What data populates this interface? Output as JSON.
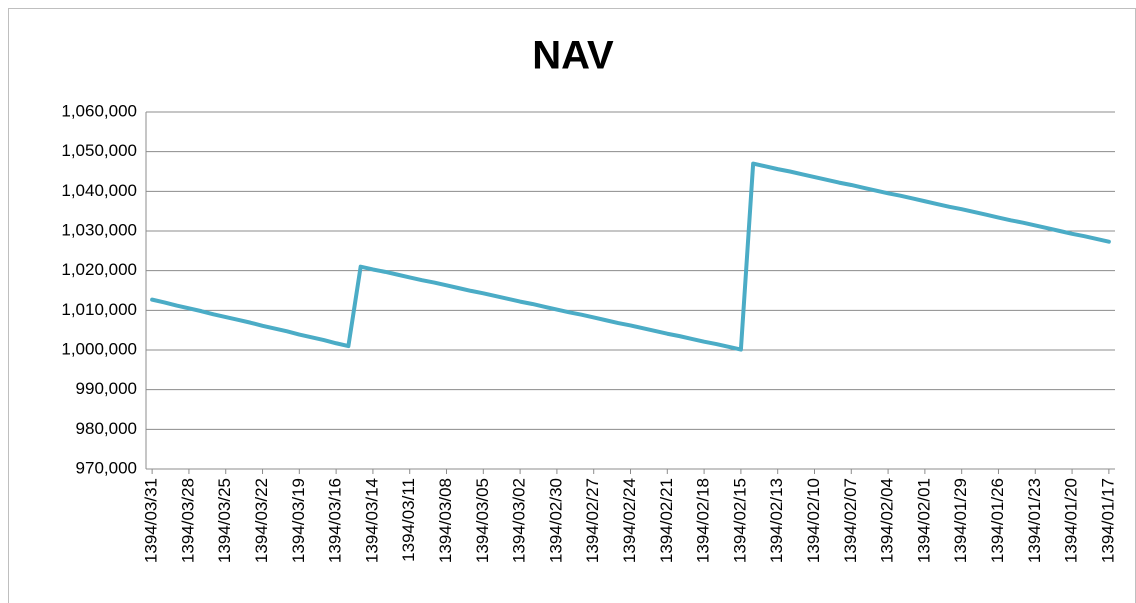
{
  "chart_data": {
    "type": "line",
    "title": "NAV",
    "color": "#4bacc6",
    "grid": true,
    "categories": [
      "1394/03/31",
      null,
      null,
      "1394/03/28",
      null,
      null,
      "1394/03/25",
      null,
      null,
      "1394/03/22",
      null,
      null,
      "1394/03/19",
      null,
      null,
      "1394/03/16",
      null,
      null,
      "1394/03/14",
      null,
      null,
      "1394/03/11",
      null,
      null,
      "1394/03/08",
      null,
      null,
      "1394/03/05",
      null,
      null,
      "1394/03/02",
      null,
      null,
      "1394/02/30",
      null,
      null,
      "1394/02/27",
      null,
      null,
      "1394/02/24",
      null,
      null,
      "1394/02/21",
      null,
      null,
      "1394/02/18",
      null,
      null,
      "1394/02/15",
      null,
      null,
      "1394/02/13",
      null,
      null,
      "1394/02/10",
      null,
      null,
      "1394/02/07",
      null,
      null,
      "1394/02/04",
      null,
      null,
      "1394/02/01",
      null,
      null,
      "1394/01/29",
      null,
      null,
      "1394/01/26",
      null,
      null,
      "1394/01/23",
      null,
      null,
      "1394/01/20",
      null,
      null,
      "1394/01/17"
    ],
    "values": [
      1012700,
      1012000,
      1011200,
      1010500,
      1009800,
      1009000,
      1008300,
      1007600,
      1006900,
      1006100,
      1005400,
      1004700,
      1003900,
      1003200,
      1002500,
      1001700,
      1001000,
      1021000,
      1020300,
      1019700,
      1019000,
      1018300,
      1017600,
      1017000,
      1016300,
      1015600,
      1014900,
      1014300,
      1013600,
      1012900,
      1012200,
      1011600,
      1010900,
      1010200,
      1009500,
      1008900,
      1008200,
      1007500,
      1006800,
      1006200,
      1005500,
      1004800,
      1004100,
      1003500,
      1002800,
      1002100,
      1001500,
      1000800,
      1000100,
      1047000,
      1046300,
      1045600,
      1045000,
      1044300,
      1043600,
      1042900,
      1042200,
      1041600,
      1040900,
      1040200,
      1039500,
      1038900,
      1038200,
      1037500,
      1036800,
      1036100,
      1035500,
      1034800,
      1034100,
      1033400,
      1032700,
      1032100,
      1031400,
      1030700,
      1030000,
      1029300,
      1028700,
      1028000,
      1027300
    ],
    "ylim": [
      970000,
      1060000
    ],
    "yticks": [
      {
        "value": 970000,
        "label": "970,000"
      },
      {
        "value": 980000,
        "label": "980,000"
      },
      {
        "value": 990000,
        "label": "990,000"
      },
      {
        "value": 1000000,
        "label": "1,000,000"
      },
      {
        "value": 1010000,
        "label": "1,010,000"
      },
      {
        "value": 1020000,
        "label": "1,020,000"
      },
      {
        "value": 1030000,
        "label": "1,030,000"
      },
      {
        "value": 1040000,
        "label": "1,040,000"
      },
      {
        "value": 1050000,
        "label": "1,050,000"
      },
      {
        "value": 1060000,
        "label": "1,060,000"
      }
    ]
  }
}
